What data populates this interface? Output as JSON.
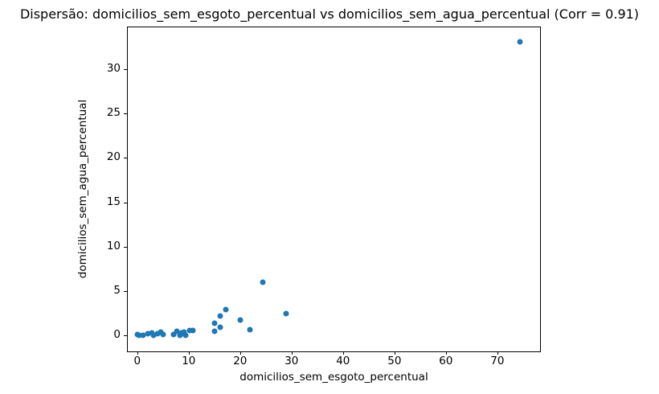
{
  "chart_data": {
    "type": "scatter",
    "title": "Dispersão: domicilios_sem_esgoto_percentual vs domicilios_sem_agua_percentual (Corr = 0.91)",
    "xlabel": "domicilios_sem_esgoto_percentual",
    "ylabel": "domicilios_sem_agua_percentual",
    "correlation": 0.91,
    "xlim": [
      -2.0,
      78.3
    ],
    "ylim": [
      -1.8,
      34.8
    ],
    "xticks": [
      0,
      10,
      20,
      30,
      40,
      50,
      60,
      70
    ],
    "yticks": [
      0,
      5,
      10,
      15,
      20,
      25,
      30
    ],
    "grid": false,
    "legend": null,
    "marker_color": "#1f77b4",
    "points": [
      [
        0.1,
        0.15
      ],
      [
        0.4,
        0.05
      ],
      [
        1.1,
        0.0
      ],
      [
        2.1,
        0.2
      ],
      [
        2.8,
        0.25
      ],
      [
        3.2,
        0.05
      ],
      [
        3.9,
        0.2
      ],
      [
        4.5,
        0.35
      ],
      [
        5.1,
        0.15
      ],
      [
        7.0,
        0.1
      ],
      [
        7.7,
        0.5
      ],
      [
        8.3,
        0.0
      ],
      [
        8.6,
        0.25
      ],
      [
        9.1,
        0.4
      ],
      [
        9.4,
        0.05
      ],
      [
        10.1,
        0.55
      ],
      [
        10.8,
        0.6
      ],
      [
        15.0,
        0.5
      ],
      [
        15.0,
        1.4
      ],
      [
        16.1,
        0.9
      ],
      [
        16.1,
        2.2
      ],
      [
        17.2,
        2.9
      ],
      [
        20.0,
        1.7
      ],
      [
        21.9,
        0.65
      ],
      [
        24.4,
        6.0
      ],
      [
        29.0,
        2.5
      ],
      [
        74.4,
        33.1
      ]
    ]
  }
}
